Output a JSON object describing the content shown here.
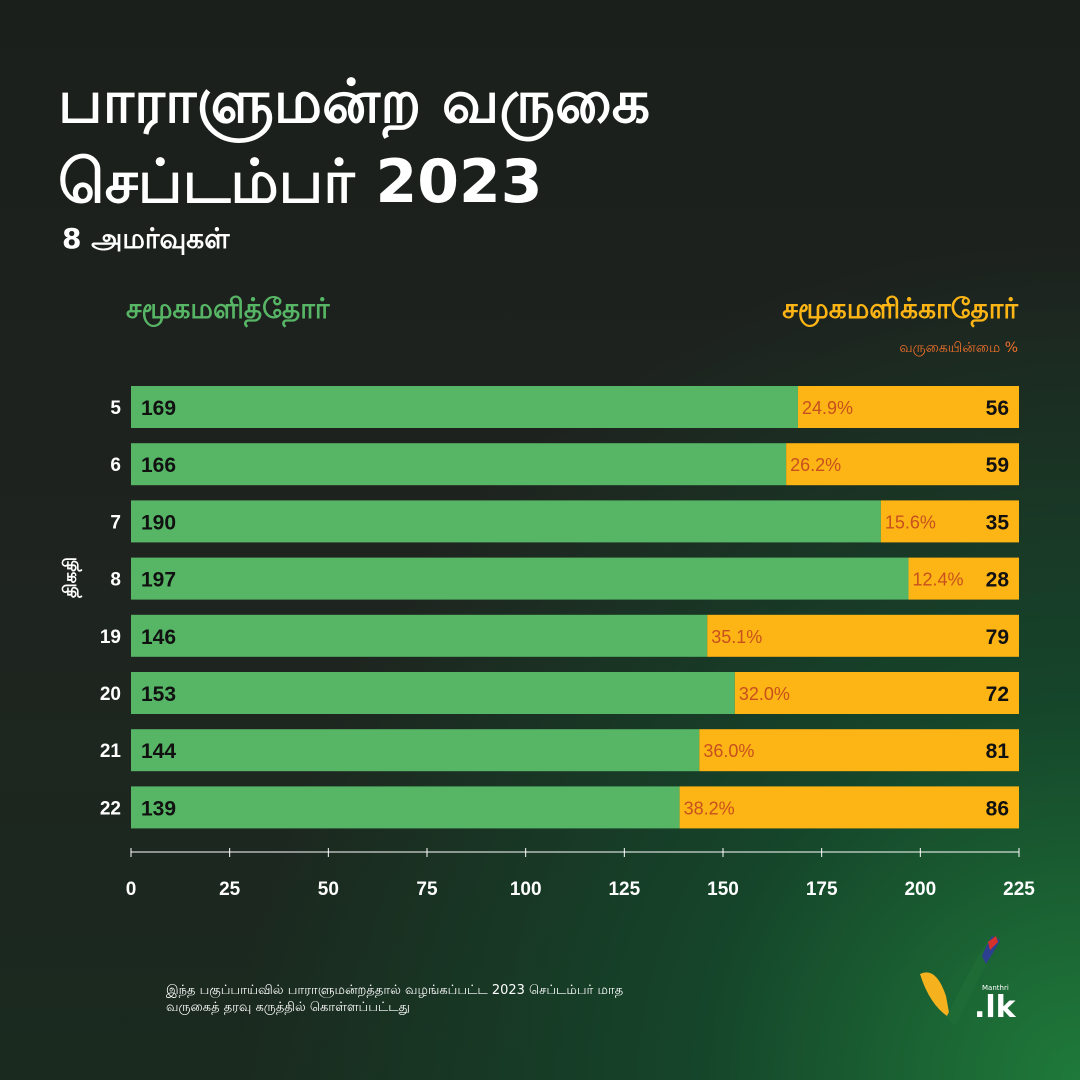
{
  "title_line1": "பாராளுமன்ற வருகை",
  "title_line2": "செப்டம்பர் 2023",
  "subtitle": "8 அமர்வுகள்",
  "footnote_line1": "இந்த பகுப்பாய்வில் பாராளுமன்றத்தால் வழங்கப்பட்ட 2023 செப்டம்பர் மாத",
  "footnote_line2": "வருகைத் தரவு கருத்தில் கொள்ளப்பட்டது",
  "logo": {
    "small": "Manthri",
    "main": ".lk"
  },
  "colors": {
    "attended": "#57b666",
    "absent": "#fdb515",
    "percent": "#c8501e"
  },
  "chart_data": {
    "type": "bar",
    "stacked": true,
    "orientation": "horizontal",
    "ylabel": "திகதி",
    "legend": {
      "attended": "சமூகமளித்தோர்",
      "absent": "சமூகமளிக்காதோர்",
      "percent_label": "வருகையின்மை %"
    },
    "categories": [
      "5",
      "6",
      "7",
      "8",
      "19",
      "20",
      "21",
      "22"
    ],
    "series": [
      {
        "name": "சமூகமளித்தோர்",
        "values": [
          169,
          166,
          190,
          197,
          146,
          153,
          144,
          139
        ]
      },
      {
        "name": "சமூகமளிக்காதோர்",
        "values": [
          56,
          59,
          35,
          28,
          79,
          72,
          81,
          86
        ]
      }
    ],
    "absence_percent": [
      "24.9%",
      "26.2%",
      "15.6%",
      "12.4%",
      "35.1%",
      "32.0%",
      "36.0%",
      "38.2%"
    ],
    "xlim": [
      0,
      225
    ],
    "xticks": [
      0,
      25,
      50,
      75,
      100,
      125,
      150,
      175,
      200,
      225
    ]
  }
}
